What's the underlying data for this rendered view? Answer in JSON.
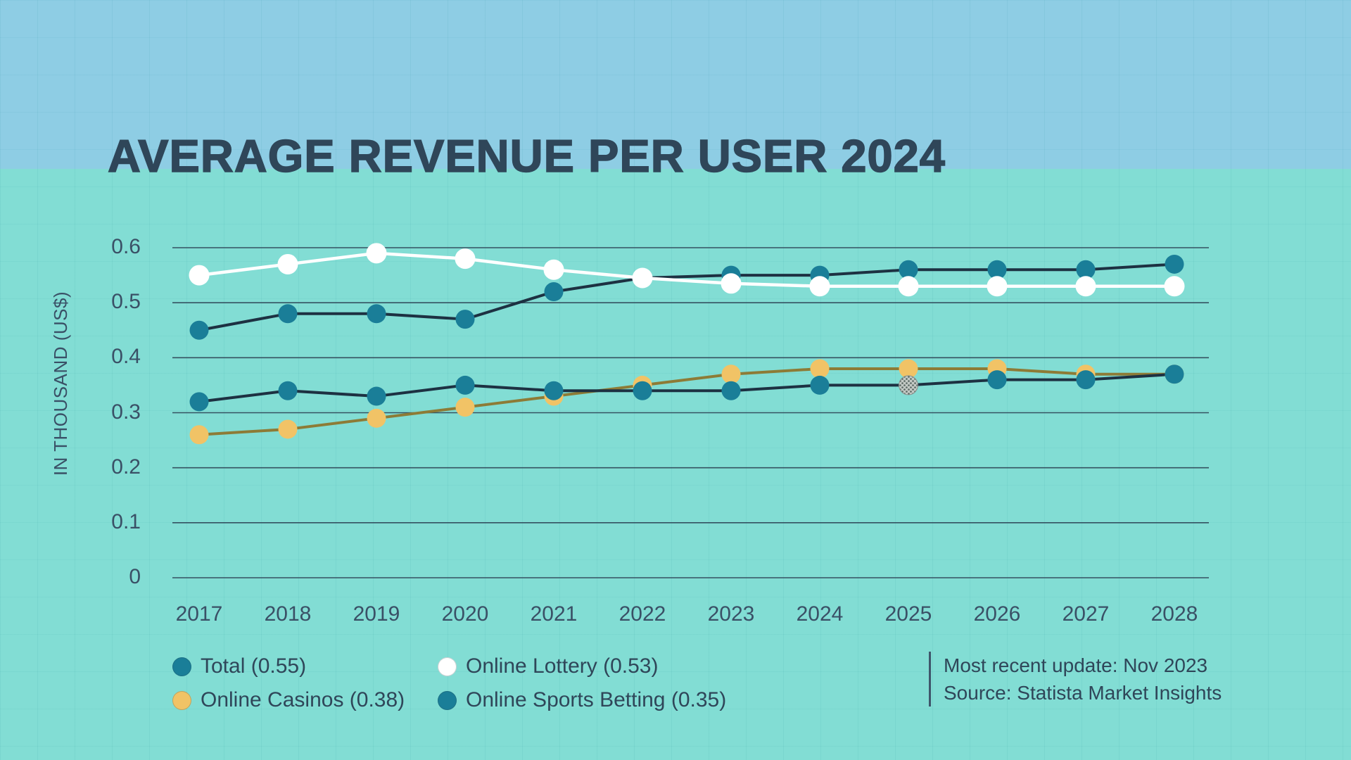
{
  "header": {
    "title": "AVERAGE REVENUE PER USER 2024"
  },
  "chart_data": {
    "type": "line",
    "title": "AVERAGE REVENUE PER USER 2024",
    "xlabel": "",
    "ylabel": "IN THOUSAND (US$)",
    "x": [
      2017,
      2018,
      2019,
      2020,
      2021,
      2022,
      2023,
      2024,
      2025,
      2026,
      2027,
      2028
    ],
    "ylim": [
      0,
      0.6
    ],
    "yticks": [
      0,
      0.1,
      0.2,
      0.3,
      0.4,
      0.5,
      0.6
    ],
    "grid": true,
    "legend_position": "bottom",
    "series": [
      {
        "name": "Total",
        "marker_color": "#1a7e98",
        "line_color": "#1d3142",
        "values": [
          0.45,
          0.48,
          0.48,
          0.47,
          0.52,
          0.545,
          0.55,
          0.55,
          0.56,
          0.56,
          0.56,
          0.57
        ]
      },
      {
        "name": "Online Lottery",
        "marker_color": "#ffffff",
        "line_color": "#ffffff",
        "values": [
          0.55,
          0.57,
          0.59,
          0.58,
          0.56,
          0.545,
          0.535,
          0.53,
          0.53,
          0.53,
          0.53,
          0.53
        ]
      },
      {
        "name": "Online Casinos",
        "marker_color": "#f1c366",
        "line_color": "#8d7b36",
        "values": [
          0.26,
          0.27,
          0.29,
          0.31,
          0.33,
          0.35,
          0.37,
          0.38,
          0.38,
          0.38,
          0.37,
          0.37
        ]
      },
      {
        "name": "Online Sports Betting",
        "marker_color": "#1a7e98",
        "line_color": "#1d3142",
        "values": [
          0.32,
          0.34,
          0.33,
          0.35,
          0.34,
          0.34,
          0.34,
          0.35,
          0.35,
          0.36,
          0.36,
          0.37
        ],
        "special_point": {
          "year": 2025,
          "style": "halftone-grey"
        }
      }
    ],
    "legend": [
      {
        "label": "Total (0.55)",
        "color": "#1a7e98"
      },
      {
        "label": "Online Lottery (0.53)",
        "color": "#ffffff"
      },
      {
        "label": "Online Casinos (0.38)",
        "color": "#f1c366"
      },
      {
        "label": "Online Sports Betting (0.35)",
        "color": "#1a7e98"
      }
    ]
  },
  "footer": {
    "updated": "Most recent update: Nov 2023",
    "source": "Source: Statista Market Insights"
  }
}
